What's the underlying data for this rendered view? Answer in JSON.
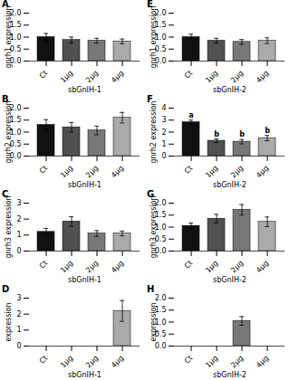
{
  "chart_data": [
    {
      "type": "bar",
      "title": "A",
      "ylabel": "gnrh1 expression",
      "xlabel": "sbGnIH-1",
      "categories": [
        "Ct",
        "1μg",
        "2μg",
        "4μg"
      ],
      "values": [
        1.0,
        0.88,
        0.85,
        0.82
      ],
      "errors": [
        0.15,
        0.12,
        0.1,
        0.1
      ],
      "colors": [
        "#111111",
        "#505050",
        "#787878",
        "#aaaaaa"
      ],
      "ylim": [
        0,
        2.0
      ],
      "yticks": [
        {
          "value": 0,
          "label": "0.0"
        },
        0.5,
        {
          "value": 1,
          "label": "1.0"
        },
        1.5,
        {
          "value": 2,
          "label": "2.0"
        }
      ]
    },
    {
      "type": "bar",
      "title": "B",
      "ylabel": "gnrh2 expression",
      "xlabel": "sbGnIH-1",
      "categories": [
        "Ct",
        "1μg",
        "2μg",
        "4μg"
      ],
      "values": [
        1.3,
        1.2,
        1.07,
        1.6
      ],
      "errors": [
        0.22,
        0.2,
        0.18,
        0.22
      ],
      "colors": [
        "#111111",
        "#505050",
        "#787878",
        "#aaaaaa"
      ],
      "ylim": [
        0,
        2.0
      ],
      "yticks": [
        {
          "value": 0,
          "label": "0.0"
        },
        0.5,
        {
          "value": 1,
          "label": "1.0"
        },
        1.5,
        {
          "value": 2,
          "label": "2.0"
        }
      ]
    },
    {
      "type": "bar",
      "title": "C",
      "ylabel": "gnrh3 expression",
      "xlabel": "sbGnIH-1",
      "categories": [
        "Ct",
        "1μg",
        "2μg",
        "4μg"
      ],
      "values": [
        1.2,
        1.85,
        1.1,
        1.1
      ],
      "errors": [
        0.22,
        0.3,
        0.18,
        0.15
      ],
      "colors": [
        "#111111",
        "#505050",
        "#787878",
        "#aaaaaa"
      ],
      "ylim": [
        0,
        3.0
      ],
      "yticks": [
        0,
        1,
        2,
        3
      ]
    },
    {
      "type": "bar",
      "title": "D",
      "ylabel": "expression",
      "xlabel": "sbGnIH-1",
      "categories": [
        "Ct",
        "1μg",
        "2μg",
        "4μg"
      ],
      "values": [
        null,
        null,
        null,
        2.2
      ],
      "errors": [
        null,
        null,
        null,
        0.65
      ],
      "colors": [
        "#111111",
        "#505050",
        "#787878",
        "#aaaaaa"
      ],
      "ylim": [
        0,
        3.0
      ],
      "yticks": [
        0,
        1,
        2,
        3
      ]
    },
    {
      "type": "bar",
      "title": "E",
      "ylabel": "gnrh1 expression",
      "xlabel": "sbGnIH-2",
      "categories": [
        "Ct",
        "1μg",
        "2μg",
        "4μg"
      ],
      "values": [
        1.0,
        0.85,
        0.8,
        0.85
      ],
      "errors": [
        0.12,
        0.1,
        0.1,
        0.12
      ],
      "colors": [
        "#111111",
        "#505050",
        "#787878",
        "#aaaaaa"
      ],
      "ylim": [
        0,
        2.0
      ],
      "yticks": [
        {
          "value": 0,
          "label": "0.0"
        },
        0.5,
        {
          "value": 1,
          "label": "1.0"
        },
        1.5,
        {
          "value": 2,
          "label": "2.0"
        }
      ]
    },
    {
      "type": "bar",
      "title": "F",
      "ylabel": "gnrh2 expression",
      "xlabel": "sbGnIH-2",
      "categories": [
        "Ct",
        "1μg",
        "2μg",
        "4μg"
      ],
      "values": [
        2.82,
        1.28,
        1.2,
        1.5
      ],
      "errors": [
        0.18,
        0.15,
        0.18,
        0.22
      ],
      "colors": [
        "#111111",
        "#505050",
        "#787878",
        "#aaaaaa"
      ],
      "annotations": [
        "a",
        "b",
        "b",
        "b"
      ],
      "ylim": [
        0,
        4.0
      ],
      "yticks": [
        0,
        1,
        2,
        3,
        4
      ]
    },
    {
      "type": "bar",
      "title": "G",
      "ylabel": "gnrh3 expression",
      "xlabel": "sbGnIH-2",
      "categories": [
        "Ct",
        "1μg",
        "2μg",
        "4μg"
      ],
      "values": [
        1.05,
        1.35,
        1.72,
        1.22
      ],
      "errors": [
        0.12,
        0.18,
        0.22,
        0.2
      ],
      "colors": [
        "#111111",
        "#505050",
        "#787878",
        "#aaaaaa"
      ],
      "ylim": [
        0,
        2.0
      ],
      "yticks": [
        {
          "value": 0,
          "label": "0.0"
        },
        0.5,
        {
          "value": 1,
          "label": "1.0"
        },
        1.5,
        {
          "value": 2,
          "label": "2.0"
        }
      ]
    },
    {
      "type": "bar",
      "title": "H",
      "ylabel": "expression",
      "xlabel": "sbGnIH-2",
      "categories": [
        "Ct",
        "1μg",
        "2μg",
        "4μg"
      ],
      "values": [
        null,
        null,
        1.05,
        null
      ],
      "errors": [
        null,
        null,
        0.18,
        null
      ],
      "colors": [
        "#111111",
        "#505050",
        "#787878",
        "#aaaaaa"
      ],
      "ylim": [
        0,
        2.0
      ],
      "yticks": [
        {
          "value": 0,
          "label": "0.0"
        },
        0.5,
        {
          "value": 1,
          "label": "1.0"
        },
        1.5,
        {
          "value": 2,
          "label": "2.0"
        }
      ]
    }
  ]
}
